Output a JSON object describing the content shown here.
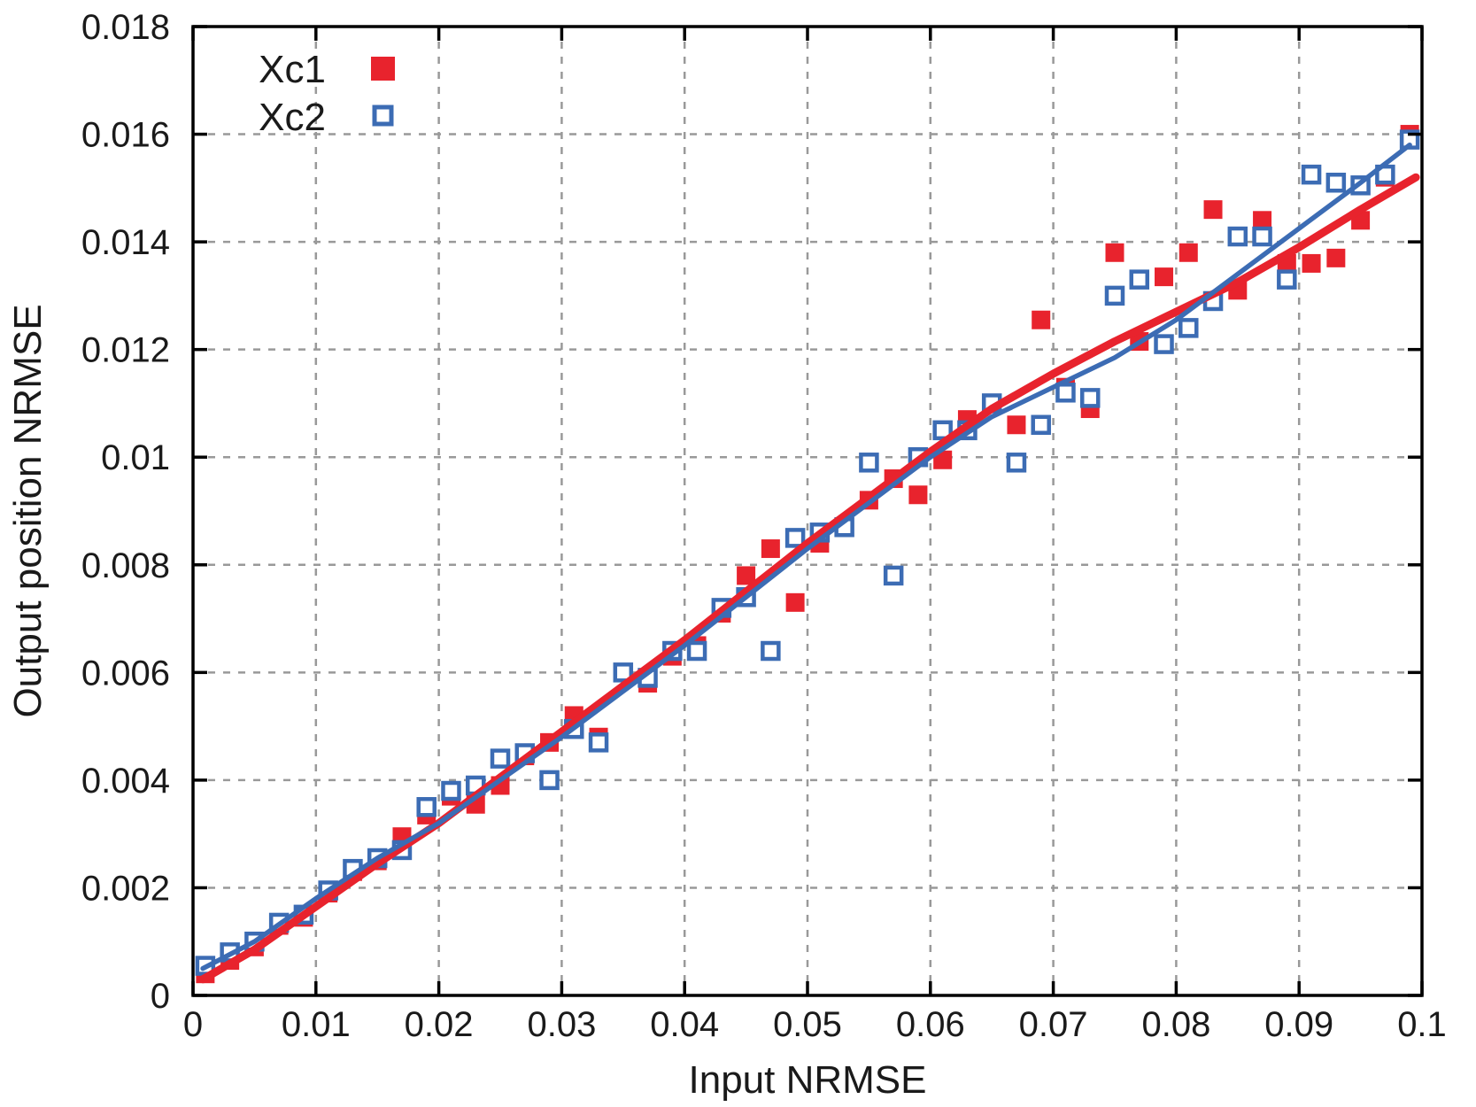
{
  "chart_data": {
    "type": "scatter",
    "title": "",
    "xlabel": "Input NRMSE",
    "ylabel": "Output position NRMSE",
    "xlim": [
      0,
      0.1
    ],
    "ylim": [
      0,
      0.018
    ],
    "grid": true,
    "grid_color": "#999999",
    "axis_color": "#000000",
    "background": "#ffffff",
    "legend_position": "top-left",
    "xticks": {
      "values": [
        0,
        0.01,
        0.02,
        0.03,
        0.04,
        0.05,
        0.06,
        0.07,
        0.08,
        0.09,
        0.1
      ],
      "labels": [
        "0",
        "0.01",
        "0.02",
        "0.03",
        "0.04",
        "0.05",
        "0.06",
        "0.07",
        "0.08",
        "0.09",
        "0.1"
      ]
    },
    "yticks": {
      "values": [
        0,
        0.002,
        0.004,
        0.006,
        0.008,
        0.01,
        0.012,
        0.014,
        0.016,
        0.018
      ],
      "labels": [
        "0",
        "0.002",
        "0.004",
        "0.006",
        "0.008",
        "0.01",
        "0.012",
        "0.014",
        "0.016",
        "0.018"
      ]
    },
    "legend": [
      {
        "label": "Xc1",
        "marker": "filled-square",
        "color": "#e8232d"
      },
      {
        "label": "Xc2",
        "marker": "open-square",
        "color": "#3c6cb4"
      }
    ],
    "series": [
      {
        "name": "Xc1",
        "kind": "scatter",
        "marker": "filled-square",
        "color": "#e8232d",
        "points": [
          [
            0.001,
            0.0004
          ],
          [
            0.003,
            0.00065
          ],
          [
            0.005,
            0.0009
          ],
          [
            0.007,
            0.0013
          ],
          [
            0.009,
            0.00145
          ],
          [
            0.011,
            0.0019
          ],
          [
            0.013,
            0.0023
          ],
          [
            0.015,
            0.0025
          ],
          [
            0.017,
            0.00295
          ],
          [
            0.019,
            0.00335
          ],
          [
            0.021,
            0.0037
          ],
          [
            0.023,
            0.00355
          ],
          [
            0.025,
            0.0039
          ],
          [
            0.027,
            0.00445
          ],
          [
            0.029,
            0.0047
          ],
          [
            0.031,
            0.0052
          ],
          [
            0.033,
            0.0048
          ],
          [
            0.035,
            0.006
          ],
          [
            0.037,
            0.0058
          ],
          [
            0.039,
            0.0063
          ],
          [
            0.041,
            0.0065
          ],
          [
            0.043,
            0.0071
          ],
          [
            0.045,
            0.0078
          ],
          [
            0.047,
            0.0083
          ],
          [
            0.049,
            0.0073
          ],
          [
            0.051,
            0.0084
          ],
          [
            0.053,
            0.0087
          ],
          [
            0.055,
            0.0092
          ],
          [
            0.057,
            0.0096
          ],
          [
            0.059,
            0.0093
          ],
          [
            0.061,
            0.00995
          ],
          [
            0.063,
            0.0107
          ],
          [
            0.065,
            0.011
          ],
          [
            0.067,
            0.0106
          ],
          [
            0.069,
            0.01255
          ],
          [
            0.071,
            0.0113
          ],
          [
            0.073,
            0.0109
          ],
          [
            0.075,
            0.0138
          ],
          [
            0.077,
            0.01215
          ],
          [
            0.079,
            0.01335
          ],
          [
            0.081,
            0.0138
          ],
          [
            0.083,
            0.0146
          ],
          [
            0.085,
            0.0131
          ],
          [
            0.087,
            0.0144
          ],
          [
            0.089,
            0.0136
          ],
          [
            0.091,
            0.0136
          ],
          [
            0.093,
            0.0137
          ],
          [
            0.095,
            0.0144
          ],
          [
            0.097,
            0.0152
          ],
          [
            0.099,
            0.016
          ]
        ]
      },
      {
        "name": "Xc2",
        "kind": "scatter",
        "marker": "open-square",
        "color": "#3c6cb4",
        "points": [
          [
            0.001,
            0.00055
          ],
          [
            0.003,
            0.0008
          ],
          [
            0.005,
            0.001
          ],
          [
            0.007,
            0.00135
          ],
          [
            0.009,
            0.0015
          ],
          [
            0.011,
            0.00195
          ],
          [
            0.013,
            0.00235
          ],
          [
            0.015,
            0.00255
          ],
          [
            0.017,
            0.0027
          ],
          [
            0.019,
            0.0035
          ],
          [
            0.021,
            0.0038
          ],
          [
            0.023,
            0.0039
          ],
          [
            0.025,
            0.0044
          ],
          [
            0.027,
            0.0045
          ],
          [
            0.029,
            0.004
          ],
          [
            0.031,
            0.00495
          ],
          [
            0.033,
            0.0047
          ],
          [
            0.035,
            0.006
          ],
          [
            0.037,
            0.0059
          ],
          [
            0.039,
            0.0064
          ],
          [
            0.041,
            0.0064
          ],
          [
            0.043,
            0.0072
          ],
          [
            0.045,
            0.0074
          ],
          [
            0.047,
            0.0064
          ],
          [
            0.049,
            0.0085
          ],
          [
            0.051,
            0.0086
          ],
          [
            0.053,
            0.0087
          ],
          [
            0.055,
            0.0099
          ],
          [
            0.057,
            0.0078
          ],
          [
            0.059,
            0.01
          ],
          [
            0.061,
            0.0105
          ],
          [
            0.063,
            0.0105
          ],
          [
            0.065,
            0.011
          ],
          [
            0.067,
            0.0099
          ],
          [
            0.069,
            0.0106
          ],
          [
            0.071,
            0.0112
          ],
          [
            0.073,
            0.0111
          ],
          [
            0.075,
            0.013
          ],
          [
            0.077,
            0.0133
          ],
          [
            0.079,
            0.0121
          ],
          [
            0.081,
            0.0124
          ],
          [
            0.083,
            0.0129
          ],
          [
            0.085,
            0.0141
          ],
          [
            0.087,
            0.0141
          ],
          [
            0.089,
            0.0133
          ],
          [
            0.091,
            0.01525
          ],
          [
            0.093,
            0.0151
          ],
          [
            0.095,
            0.01505
          ],
          [
            0.097,
            0.01525
          ],
          [
            0.099,
            0.0159
          ]
        ]
      },
      {
        "name": "Xc1-fit",
        "kind": "line",
        "color": "#e8232d",
        "width": 9,
        "points": [
          [
            0.0008,
            0.0003
          ],
          [
            0.005,
            0.00085
          ],
          [
            0.01,
            0.00165
          ],
          [
            0.015,
            0.00245
          ],
          [
            0.02,
            0.0032
          ],
          [
            0.025,
            0.00405
          ],
          [
            0.03,
            0.0049
          ],
          [
            0.035,
            0.00575
          ],
          [
            0.04,
            0.0066
          ],
          [
            0.045,
            0.0075
          ],
          [
            0.05,
            0.0084
          ],
          [
            0.055,
            0.00925
          ],
          [
            0.06,
            0.0101
          ],
          [
            0.065,
            0.0109
          ],
          [
            0.07,
            0.01155
          ],
          [
            0.075,
            0.01215
          ],
          [
            0.08,
            0.0127
          ],
          [
            0.085,
            0.01325
          ],
          [
            0.09,
            0.0139
          ],
          [
            0.095,
            0.0146
          ],
          [
            0.0995,
            0.0152
          ]
        ]
      },
      {
        "name": "Xc2-fit",
        "kind": "line",
        "color": "#3c6cb4",
        "width": 5.5,
        "points": [
          [
            0.0008,
            0.0005
          ],
          [
            0.005,
            0.001
          ],
          [
            0.01,
            0.0018
          ],
          [
            0.015,
            0.00255
          ],
          [
            0.02,
            0.0032
          ],
          [
            0.025,
            0.004
          ],
          [
            0.03,
            0.0048
          ],
          [
            0.035,
            0.00565
          ],
          [
            0.04,
            0.0065
          ],
          [
            0.045,
            0.0074
          ],
          [
            0.05,
            0.0083
          ],
          [
            0.055,
            0.00915
          ],
          [
            0.06,
            0.01
          ],
          [
            0.065,
            0.01075
          ],
          [
            0.07,
            0.0113
          ],
          [
            0.075,
            0.01185
          ],
          [
            0.08,
            0.01255
          ],
          [
            0.085,
            0.0134
          ],
          [
            0.09,
            0.01425
          ],
          [
            0.095,
            0.0151
          ],
          [
            0.099,
            0.0158
          ]
        ]
      }
    ]
  }
}
